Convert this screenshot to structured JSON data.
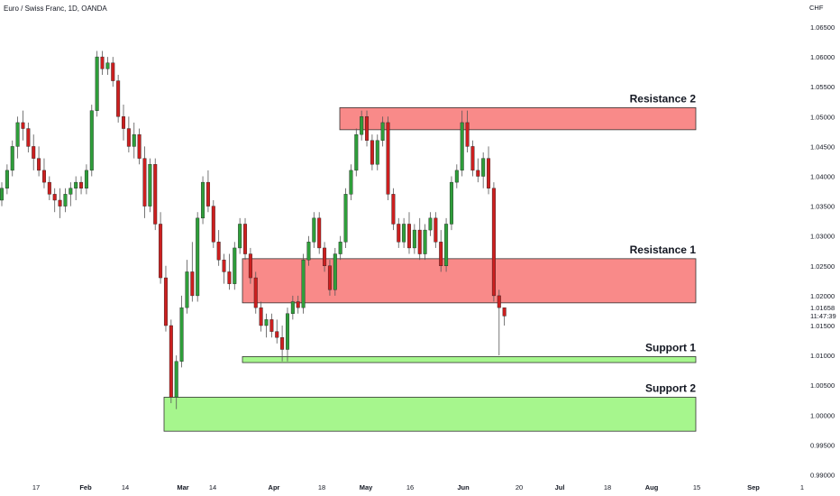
{
  "header": {
    "symbol_title": "Euro / Swiss Franc, 1D, OANDA"
  },
  "axis": {
    "currency": "CHF"
  },
  "price_badge": {
    "price": "1.01658",
    "countdown": "11:47:39",
    "color": "#ffffff"
  },
  "colors": {
    "up": "#2e9e3a",
    "down": "#cc1f1f",
    "wick": "#555555",
    "resistance_fill": "#f98a89",
    "support_fill": "#a6f68d",
    "zone_border": "#333333"
  },
  "chart_data": {
    "type": "candlestick",
    "y_ticks": [
      "1.06500",
      "1.06000",
      "1.05500",
      "1.05000",
      "1.04500",
      "1.04000",
      "1.03500",
      "1.03000",
      "1.02500",
      "1.02000",
      "1.01500",
      "1.01000",
      "1.00500",
      "1.00000",
      "0.99500",
      "0.99000"
    ],
    "x_ticks": [
      {
        "label": "17",
        "bold": false
      },
      {
        "label": "Feb",
        "bold": true
      },
      {
        "label": "14",
        "bold": false
      },
      {
        "label": "Mar",
        "bold": true
      },
      {
        "label": "14",
        "bold": false
      },
      {
        "label": "Apr",
        "bold": true
      },
      {
        "label": "18",
        "bold": false
      },
      {
        "label": "May",
        "bold": true
      },
      {
        "label": "16",
        "bold": false
      },
      {
        "label": "Jun",
        "bold": true
      },
      {
        "label": "20",
        "bold": false
      },
      {
        "label": "Jul",
        "bold": true
      },
      {
        "label": "18",
        "bold": false
      },
      {
        "label": "Aug",
        "bold": true
      },
      {
        "label": "15",
        "bold": false
      },
      {
        "label": "Sep",
        "bold": true
      },
      {
        "label": "1",
        "bold": false
      }
    ],
    "ylim": [
      0.988,
      1.068
    ],
    "zones": [
      {
        "label": "Resistance 2",
        "type": "resistance",
        "top": 1.0515,
        "bottom": 1.0478
      },
      {
        "label": "Resistance 1",
        "type": "resistance",
        "top": 1.0262,
        "bottom": 1.0188
      },
      {
        "label": "Support 1",
        "type": "support",
        "top": 1.0098,
        "bottom": 1.0088
      },
      {
        "label": "Support 2",
        "type": "support",
        "top": 1.003,
        "bottom": 0.9973
      }
    ],
    "candles": [
      [
        1.036,
        1.039,
        1.035,
        1.038
      ],
      [
        1.038,
        1.042,
        1.037,
        1.041
      ],
      [
        1.041,
        1.046,
        1.04,
        1.045
      ],
      [
        1.045,
        1.05,
        1.043,
        1.049
      ],
      [
        1.049,
        1.051,
        1.046,
        1.048
      ],
      [
        1.048,
        1.049,
        1.044,
        1.045
      ],
      [
        1.045,
        1.047,
        1.041,
        1.043
      ],
      [
        1.043,
        1.045,
        1.04,
        1.041
      ],
      [
        1.041,
        1.043,
        1.038,
        1.039
      ],
      [
        1.039,
        1.04,
        1.036,
        1.037
      ],
      [
        1.037,
        1.038,
        1.034,
        1.036
      ],
      [
        1.036,
        1.038,
        1.033,
        1.035
      ],
      [
        1.035,
        1.038,
        1.034,
        1.037
      ],
      [
        1.037,
        1.039,
        1.035,
        1.038
      ],
      [
        1.038,
        1.04,
        1.036,
        1.039
      ],
      [
        1.039,
        1.04,
        1.037,
        1.038
      ],
      [
        1.038,
        1.042,
        1.037,
        1.041
      ],
      [
        1.041,
        1.052,
        1.04,
        1.051
      ],
      [
        1.051,
        1.061,
        1.05,
        1.06
      ],
      [
        1.06,
        1.061,
        1.057,
        1.058
      ],
      [
        1.058,
        1.06,
        1.057,
        1.059
      ],
      [
        1.059,
        1.06,
        1.055,
        1.056
      ],
      [
        1.056,
        1.057,
        1.049,
        1.05
      ],
      [
        1.05,
        1.052,
        1.046,
        1.048
      ],
      [
        1.048,
        1.05,
        1.044,
        1.045
      ],
      [
        1.045,
        1.049,
        1.043,
        1.047
      ],
      [
        1.047,
        1.048,
        1.042,
        1.043
      ],
      [
        1.043,
        1.045,
        1.033,
        1.035
      ],
      [
        1.035,
        1.043,
        1.034,
        1.042
      ],
      [
        1.042,
        1.043,
        1.031,
        1.032
      ],
      [
        1.032,
        1.034,
        1.022,
        1.023
      ],
      [
        1.023,
        1.025,
        1.014,
        1.015
      ],
      [
        1.015,
        1.016,
        1.002,
        1.003
      ],
      [
        1.003,
        1.01,
        1.001,
        1.009
      ],
      [
        1.009,
        1.02,
        1.008,
        1.018
      ],
      [
        1.018,
        1.026,
        1.017,
        1.024
      ],
      [
        1.024,
        1.029,
        1.019,
        1.02
      ],
      [
        1.02,
        1.034,
        1.019,
        1.033
      ],
      [
        1.033,
        1.04,
        1.032,
        1.039
      ],
      [
        1.039,
        1.041,
        1.034,
        1.035
      ],
      [
        1.035,
        1.036,
        1.028,
        1.029
      ],
      [
        1.029,
        1.031,
        1.025,
        1.026
      ],
      [
        1.026,
        1.027,
        1.022,
        1.024
      ],
      [
        1.024,
        1.027,
        1.021,
        1.022
      ],
      [
        1.022,
        1.029,
        1.021,
        1.028
      ],
      [
        1.028,
        1.033,
        1.027,
        1.032
      ],
      [
        1.032,
        1.033,
        1.026,
        1.027
      ],
      [
        1.027,
        1.028,
        1.022,
        1.023
      ],
      [
        1.023,
        1.024,
        1.017,
        1.018
      ],
      [
        1.018,
        1.019,
        1.014,
        1.015
      ],
      [
        1.015,
        1.017,
        1.013,
        1.016
      ],
      [
        1.016,
        1.017,
        1.013,
        1.014
      ],
      [
        1.014,
        1.016,
        1.012,
        1.013
      ],
      [
        1.013,
        1.015,
        1.009,
        1.011
      ],
      [
        1.011,
        1.018,
        1.009,
        1.017
      ],
      [
        1.017,
        1.02,
        1.016,
        1.019
      ],
      [
        1.019,
        1.02,
        1.017,
        1.018
      ],
      [
        1.018,
        1.027,
        1.017,
        1.026
      ],
      [
        1.026,
        1.03,
        1.025,
        1.029
      ],
      [
        1.029,
        1.034,
        1.028,
        1.033
      ],
      [
        1.033,
        1.034,
        1.027,
        1.028
      ],
      [
        1.028,
        1.029,
        1.024,
        1.025
      ],
      [
        1.025,
        1.026,
        1.02,
        1.021
      ],
      [
        1.021,
        1.028,
        1.02,
        1.027
      ],
      [
        1.027,
        1.03,
        1.026,
        1.029
      ],
      [
        1.029,
        1.038,
        1.028,
        1.037
      ],
      [
        1.037,
        1.042,
        1.036,
        1.041
      ],
      [
        1.041,
        1.048,
        1.04,
        1.047
      ],
      [
        1.047,
        1.051,
        1.046,
        1.05
      ],
      [
        1.05,
        1.051,
        1.045,
        1.046
      ],
      [
        1.046,
        1.047,
        1.041,
        1.042
      ],
      [
        1.042,
        1.047,
        1.041,
        1.046
      ],
      [
        1.046,
        1.05,
        1.045,
        1.049
      ],
      [
        1.049,
        1.05,
        1.036,
        1.037
      ],
      [
        1.037,
        1.038,
        1.031,
        1.032
      ],
      [
        1.032,
        1.033,
        1.028,
        1.029
      ],
      [
        1.029,
        1.033,
        1.028,
        1.032
      ],
      [
        1.032,
        1.034,
        1.027,
        1.028
      ],
      [
        1.028,
        1.032,
        1.027,
        1.031
      ],
      [
        1.031,
        1.033,
        1.026,
        1.027
      ],
      [
        1.027,
        1.032,
        1.026,
        1.031
      ],
      [
        1.031,
        1.034,
        1.03,
        1.033
      ],
      [
        1.033,
        1.034,
        1.028,
        1.029
      ],
      [
        1.029,
        1.031,
        1.024,
        1.025
      ],
      [
        1.025,
        1.033,
        1.024,
        1.032
      ],
      [
        1.032,
        1.04,
        1.031,
        1.039
      ],
      [
        1.039,
        1.042,
        1.038,
        1.041
      ],
      [
        1.041,
        1.051,
        1.04,
        1.049
      ],
      [
        1.049,
        1.051,
        1.044,
        1.045
      ],
      [
        1.045,
        1.046,
        1.04,
        1.041
      ],
      [
        1.041,
        1.043,
        1.039,
        1.04
      ],
      [
        1.04,
        1.044,
        1.038,
        1.043
      ],
      [
        1.043,
        1.045,
        1.037,
        1.038
      ],
      [
        1.038,
        1.039,
        1.019,
        1.02
      ],
      [
        1.02,
        1.021,
        1.01,
        1.018
      ],
      [
        1.018,
        1.018,
        1.015,
        1.0166
      ]
    ]
  }
}
